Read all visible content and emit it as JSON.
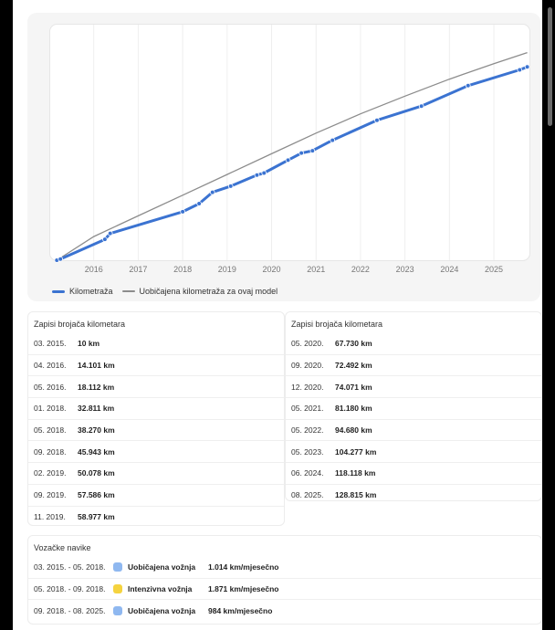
{
  "chart_data": {
    "type": "line",
    "x_ticks": [
      "2016",
      "2017",
      "2018",
      "2019",
      "2020",
      "2021",
      "2022",
      "2023",
      "2024",
      "2025"
    ],
    "xlim": [
      2015.0,
      2025.8
    ],
    "ylim": [
      0,
      160000
    ],
    "grid": true,
    "legend_position": "bottom-left",
    "series": [
      {
        "name": "Kilometraža",
        "color": "#3b73d1",
        "points": [
          [
            2015.17,
            10
          ],
          [
            2015.25,
            800
          ],
          [
            2016.25,
            14101
          ],
          [
            2016.37,
            18112
          ],
          [
            2018.0,
            32811
          ],
          [
            2018.37,
            38270
          ],
          [
            2018.67,
            45943
          ],
          [
            2019.08,
            50078
          ],
          [
            2019.67,
            57586
          ],
          [
            2019.83,
            58977
          ],
          [
            2020.37,
            67730
          ],
          [
            2020.67,
            72492
          ],
          [
            2020.92,
            74071
          ],
          [
            2021.37,
            81180
          ],
          [
            2022.37,
            94680
          ],
          [
            2023.37,
            104277
          ],
          [
            2024.42,
            118118
          ],
          [
            2025.58,
            128815
          ],
          [
            2025.75,
            130800
          ]
        ]
      },
      {
        "name": "Uobičajena kilometraža za ovaj model",
        "color": "#8c8c8c",
        "points": [
          [
            2015.17,
            10
          ],
          [
            2016.0,
            16000
          ],
          [
            2017.0,
            30000
          ],
          [
            2018.0,
            44000
          ],
          [
            2019.0,
            58000
          ],
          [
            2020.0,
            72000
          ],
          [
            2021.0,
            86000
          ],
          [
            2022.0,
            99000
          ],
          [
            2023.0,
            111000
          ],
          [
            2024.0,
            122500
          ],
          [
            2025.0,
            133000
          ],
          [
            2025.75,
            140500
          ]
        ]
      }
    ]
  },
  "legend": {
    "mileage": "Kilometraža",
    "typical": "Uobičajena kilometraža za ovaj model"
  },
  "records_left": {
    "title": "Zapisi brojača kilometara",
    "rows": [
      {
        "date": "03. 2015.",
        "km": "10 km"
      },
      {
        "date": "04. 2016.",
        "km": "14.101 km"
      },
      {
        "date": "05. 2016.",
        "km": "18.112 km"
      },
      {
        "date": "01. 2018.",
        "km": "32.811 km"
      },
      {
        "date": "05. 2018.",
        "km": "38.270 km"
      },
      {
        "date": "09. 2018.",
        "km": "45.943 km"
      },
      {
        "date": "02. 2019.",
        "km": "50.078 km"
      },
      {
        "date": "09. 2019.",
        "km": "57.586 km"
      },
      {
        "date": "11. 2019.",
        "km": "58.977 km"
      }
    ]
  },
  "records_right": {
    "title": "Zapisi brojača kilometara",
    "rows": [
      {
        "date": "05. 2020.",
        "km": "67.730 km"
      },
      {
        "date": "09. 2020.",
        "km": "72.492 km"
      },
      {
        "date": "12. 2020.",
        "km": "74.071 km"
      },
      {
        "date": "05. 2021.",
        "km": "81.180 km"
      },
      {
        "date": "05. 2022.",
        "km": "94.680 km"
      },
      {
        "date": "05. 2023.",
        "km": "104.277 km"
      },
      {
        "date": "06. 2024.",
        "km": "118.118 km"
      },
      {
        "date": "08. 2025.",
        "km": "128.815 km"
      }
    ]
  },
  "habits": {
    "title": "Vozačke navike",
    "rows": [
      {
        "period": "03. 2015. - 05. 2018.",
        "type": "Uobičajena vožnja",
        "rate": "1.014 km/mjesečno",
        "color": "#8fb8f0"
      },
      {
        "period": "05. 2018. - 09. 2018.",
        "type": "Intenzivna vožnja",
        "rate": "1.871 km/mjesečno",
        "color": "#f5d33f"
      },
      {
        "period": "09. 2018. - 08. 2025.",
        "type": "Uobičajena vožnja",
        "rate": "984 km/mjesečno",
        "color": "#8fb8f0"
      }
    ]
  }
}
